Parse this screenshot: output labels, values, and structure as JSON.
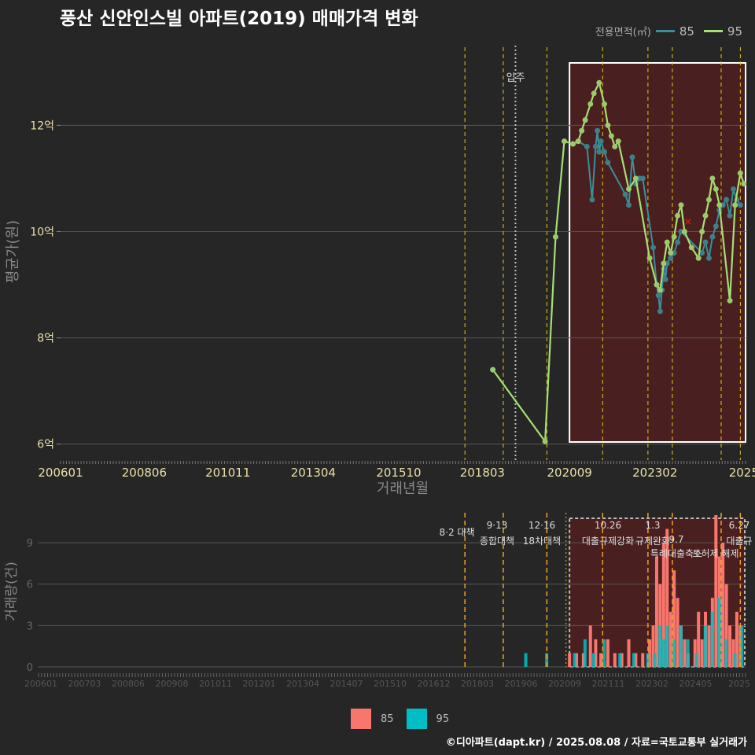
{
  "title": "풍산 신안인스빌 아파트(2019) 매매가격 변화",
  "footer": "©디아파트(dapt.kr) / 2025.08.08 / 자료=국토교통부 실거래가",
  "colors": {
    "bg": "#262626",
    "s85_line": "#3a8f9a",
    "s85_point": "#3f7f88",
    "s95": "#a6df73",
    "bar85": "#f8766d",
    "bar95": "#00bfc4",
    "highlight": "#4a1f1f",
    "policy": "#e6c619",
    "policy_bar": "#f0a020"
  },
  "legend_top": {
    "title": "전용면적(㎡)",
    "items": [
      "85",
      "95"
    ]
  },
  "legend_bottom": {
    "items": [
      "85",
      "95"
    ]
  },
  "chart_data": [
    {
      "type": "line",
      "xlabel": "거래년월",
      "ylabel": "평균가(원)",
      "x_ticks": [
        "200601",
        "200806",
        "201011",
        "201304",
        "201510",
        "201803",
        "202009",
        "202302",
        "2025"
      ],
      "y_ticks": [
        "6억",
        "8억",
        "10억",
        "12억"
      ],
      "ylim": [
        5.7,
        13.5
      ],
      "annotation": "입주",
      "series": [
        {
          "name": "85",
          "x": [
            2020.85,
            2021.1,
            2021.25,
            2021.35,
            2021.4,
            2021.45,
            2021.5,
            2021.6,
            2021.7,
            2022.2,
            2022.3,
            2022.4,
            2022.5,
            2022.6,
            2022.7,
            2023.0,
            2023.1,
            2023.15,
            2023.2,
            2023.25,
            2023.3,
            2023.35,
            2023.4,
            2023.5,
            2023.6,
            2023.7,
            2023.8,
            2024.4,
            2024.5,
            2024.6,
            2024.7,
            2024.8,
            2024.9,
            2025.0,
            2025.1,
            2025.2,
            2025.3,
            2025.4,
            2025.5
          ],
          "y": [
            11.7,
            11.6,
            10.6,
            11.6,
            11.9,
            11.5,
            11.7,
            11.5,
            11.3,
            10.7,
            10.5,
            11.4,
            10.9,
            11.0,
            11.0,
            9.7,
            9.0,
            8.8,
            8.5,
            8.9,
            9.3,
            9.1,
            9.4,
            9.5,
            9.6,
            9.8,
            10.0,
            9.6,
            9.8,
            9.5,
            9.9,
            10.1,
            10.4,
            10.5,
            10.6,
            10.3,
            10.8,
            10.6,
            10.5
          ]
        },
        {
          "name": "95",
          "x": [
            2018.4,
            2019.9,
            2020.2,
            2020.45,
            2020.7,
            2020.85,
            2020.95,
            2021.05,
            2021.2,
            2021.3,
            2021.45,
            2021.6,
            2021.7,
            2021.8,
            2021.9,
            2022.0,
            2022.3,
            2022.5,
            2022.9,
            2023.1,
            2023.2,
            2023.3,
            2023.4,
            2023.5,
            2023.6,
            2023.7,
            2023.8,
            2023.9,
            2024.1,
            2024.3,
            2024.4,
            2024.5,
            2024.6,
            2024.7,
            2024.8,
            2024.9,
            2025.2,
            2025.35,
            2025.5,
            2025.6
          ],
          "y": [
            7.4,
            6.05,
            9.9,
            11.7,
            11.65,
            11.7,
            11.9,
            12.1,
            12.4,
            12.6,
            12.8,
            12.4,
            12.0,
            11.8,
            11.6,
            11.7,
            10.8,
            11.0,
            9.5,
            9.0,
            8.9,
            9.4,
            9.8,
            9.6,
            9.9,
            10.3,
            10.5,
            10.0,
            9.7,
            9.5,
            10.0,
            10.3,
            10.6,
            11.0,
            10.8,
            10.5,
            8.7,
            10.5,
            11.1,
            10.9
          ]
        }
      ]
    },
    {
      "type": "bar",
      "xlabel": "",
      "ylabel": "거래량(건)",
      "x_ticks": [
        "200601",
        "200703",
        "200806",
        "200908",
        "201011",
        "201201",
        "201304",
        "201407",
        "201510",
        "201612",
        "201803",
        "201906",
        "202009",
        "202111",
        "202302",
        "202405",
        "2025"
      ],
      "y_ticks": [
        "0",
        "3",
        "6",
        "9"
      ],
      "ylim": [
        0,
        11
      ],
      "policy_labels": [
        {
          "date": "8·2 대책",
          "title": ""
        },
        {
          "date": "9·13",
          "title": "종합대책"
        },
        {
          "date": "12·16",
          "title": "18차대책"
        },
        {
          "date": "10.26",
          "title": "대출규제강화"
        },
        {
          "date": "1.3",
          "title": "규제완화"
        },
        {
          "date": "9.7",
          "title": "특례대출축소"
        },
        {
          "date": "",
          "title": "토허제 해제"
        },
        {
          "date": "6.27",
          "title": "대출규"
        }
      ],
      "series": [
        {
          "name": "85",
          "x": [
            2020.6,
            2020.8,
            2021.0,
            2021.2,
            2021.35,
            2021.5,
            2021.7,
            2021.9,
            2022.1,
            2022.3,
            2022.5,
            2022.7,
            2022.9,
            2023.0,
            2023.1,
            2023.2,
            2023.3,
            2023.4,
            2023.5,
            2023.6,
            2023.7,
            2023.8,
            2023.9,
            2024.0,
            2024.2,
            2024.3,
            2024.4,
            2024.5,
            2024.6,
            2024.7,
            2024.8,
            2024.9,
            2025.0,
            2025.1,
            2025.2,
            2025.3,
            2025.4,
            2025.5
          ],
          "values": [
            1,
            1,
            1,
            3,
            2,
            1,
            2,
            1,
            1,
            2,
            1,
            1,
            2,
            3,
            8,
            6,
            9,
            10,
            4,
            7,
            5,
            3,
            2,
            1,
            2,
            4,
            2,
            4,
            3,
            5,
            11,
            8,
            9,
            6,
            3,
            2,
            4,
            3
          ]
        },
        {
          "name": "95",
          "x": [
            2019.3,
            2019.9,
            2020.7,
            2021.0,
            2021.25,
            2021.55,
            2022.0,
            2022.4,
            2022.8,
            2023.0,
            2023.15,
            2023.25,
            2023.35,
            2023.55,
            2023.75,
            2023.95,
            2024.2,
            2024.45,
            2024.65,
            2024.85,
            2025.05,
            2025.3,
            2025.5
          ],
          "values": [
            1,
            1,
            1,
            2,
            1,
            2,
            1,
            1,
            1,
            1,
            3,
            2,
            3,
            2,
            3,
            2,
            1,
            3,
            4,
            5,
            2,
            1,
            3
          ]
        }
      ]
    }
  ]
}
